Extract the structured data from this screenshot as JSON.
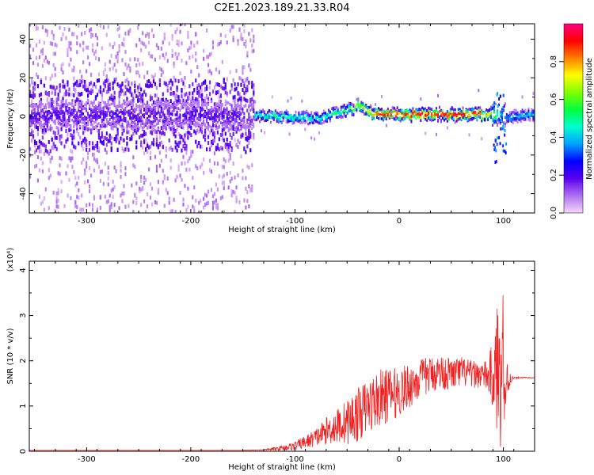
{
  "title": "C2E1.2023.189.21.33.R04",
  "chart_data": [
    {
      "type": "heatmap",
      "xlabel": "Height of straight line (km)",
      "ylabel": "Frequency (Hz)",
      "xlim": [
        -355,
        130
      ],
      "ylim": [
        -50,
        48
      ],
      "x_ticks": [
        -300,
        -200,
        -100,
        0,
        100
      ],
      "y_ticks": [
        -40,
        -20,
        0,
        20,
        40
      ],
      "colorbar": {
        "label": "Normalized spectral amplitude",
        "range": [
          0,
          1
        ],
        "ticks": [
          0.0,
          0.2,
          0.4,
          0.6,
          0.8
        ],
        "colormap": [
          "#f2d9fb",
          "#b070f0",
          "#5a00f0",
          "#0000ff",
          "#00a0ff",
          "#00ffd0",
          "#00ff40",
          "#80ff00",
          "#ffff00",
          "#ff8000",
          "#ff0000",
          "#ff0080"
        ]
      },
      "ridge": {
        "x": [
          -355,
          -300,
          -250,
          -200,
          -150,
          -140,
          -120,
          -100,
          -80,
          -60,
          -45,
          -38,
          -30,
          -20,
          0,
          20,
          40,
          60,
          80,
          90,
          95,
          100,
          110,
          130
        ],
        "frequency": [
          0,
          1,
          0,
          1,
          0,
          1,
          0,
          0,
          -1,
          2,
          4,
          6,
          2,
          1,
          1,
          1,
          1,
          1,
          1,
          1,
          2,
          0,
          0,
          1
        ],
        "peak_amplitude": [
          0.2,
          0.2,
          0.25,
          0.2,
          0.2,
          0.45,
          0.5,
          0.5,
          0.45,
          0.55,
          0.6,
          0.7,
          0.75,
          0.9,
          0.9,
          0.95,
          0.95,
          0.95,
          0.9,
          0.6,
          0.45,
          0.35,
          0.4,
          0.4
        ]
      }
    },
    {
      "type": "line",
      "xlabel": "Height of straight line (km)",
      "ylabel": "SNR (10 * v/v)",
      "y_multiplier": "(x10⁴)",
      "xlim": [
        -355,
        130
      ],
      "ylim": [
        0,
        4.2
      ],
      "x_ticks": [
        -300,
        -200,
        -100,
        0,
        100
      ],
      "y_ticks": [
        0,
        1,
        2,
        3,
        4
      ],
      "series": [
        {
          "color": "#ee2222",
          "x": [
            -355,
            -300,
            -250,
            -200,
            -150,
            -130,
            -120,
            -110,
            -100,
            -90,
            -80,
            -70,
            -60,
            -50,
            -40,
            -30,
            -20,
            -10,
            0,
            10,
            20,
            30,
            40,
            50,
            60,
            70,
            80,
            85,
            90,
            93,
            95,
            97,
            99,
            101,
            103,
            106,
            110,
            120,
            130
          ],
          "values": [
            0.02,
            0.02,
            0.02,
            0.02,
            0.02,
            0.03,
            0.05,
            0.08,
            0.12,
            0.2,
            0.3,
            0.45,
            0.55,
            0.65,
            0.8,
            1.0,
            1.15,
            1.25,
            1.3,
            1.45,
            1.6,
            1.7,
            1.75,
            1.7,
            1.75,
            1.7,
            1.7,
            1.65,
            1.7,
            1.6,
            2.0,
            1.3,
            3.2,
            1.1,
            1.5,
            1.6,
            1.62,
            1.63,
            1.62
          ],
          "noise_amplitude": [
            0.0,
            0.0,
            0.0,
            0.0,
            0.0,
            0.01,
            0.04,
            0.06,
            0.1,
            0.15,
            0.2,
            0.3,
            0.4,
            0.5,
            0.6,
            0.6,
            0.65,
            0.6,
            0.55,
            0.5,
            0.45,
            0.4,
            0.4,
            0.35,
            0.35,
            0.3,
            0.3,
            0.35,
            0.8,
            1.2,
            1.8,
            1.5,
            1.3,
            1.0,
            0.6,
            0.2,
            0.02,
            0.01,
            0.01
          ]
        }
      ]
    }
  ]
}
